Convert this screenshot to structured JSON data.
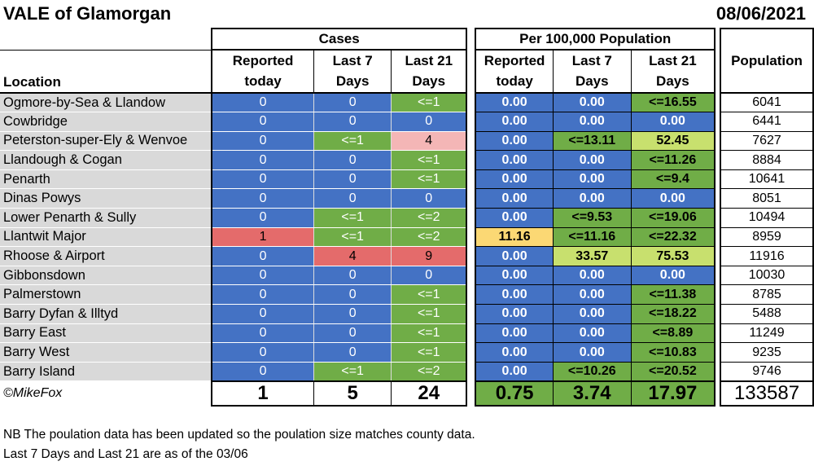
{
  "title": "VALE of Glamorgan",
  "date": "08/06/2021",
  "headers": {
    "location": "Location",
    "cases_group": "Cases",
    "per100k_group": "Per 100,000 Population",
    "population": "Population",
    "reported_today_1": "Reported",
    "reported_today_2": "today",
    "last7_1": "Last 7",
    "last7_2": "Days",
    "last21_1": "Last 21",
    "last21_2": "Days"
  },
  "rows": [
    {
      "location": "Ogmore-by-Sea & Llandow",
      "reported": "0",
      "last7": "0",
      "last21": "<=1",
      "p_reported": "0.00",
      "p_last7": "0.00",
      "p_last21": "<=16.55",
      "population": "6041"
    },
    {
      "location": "Cowbridge",
      "reported": "0",
      "last7": "0",
      "last21": "0",
      "p_reported": "0.00",
      "p_last7": "0.00",
      "p_last21": "0.00",
      "population": "6441"
    },
    {
      "location": "Peterston-super-Ely & Wenvoe",
      "reported": "0",
      "last7": "<=1",
      "last21": "4",
      "p_reported": "0.00",
      "p_last7": "<=13.11",
      "p_last21": "52.45",
      "population": "7627"
    },
    {
      "location": "Llandough & Cogan",
      "reported": "0",
      "last7": "0",
      "last21": "<=1",
      "p_reported": "0.00",
      "p_last7": "0.00",
      "p_last21": "<=11.26",
      "population": "8884"
    },
    {
      "location": "Penarth",
      "reported": "0",
      "last7": "0",
      "last21": "<=1",
      "p_reported": "0.00",
      "p_last7": "0.00",
      "p_last21": "<=9.4",
      "population": "10641"
    },
    {
      "location": "Dinas Powys",
      "reported": "0",
      "last7": "0",
      "last21": "0",
      "p_reported": "0.00",
      "p_last7": "0.00",
      "p_last21": "0.00",
      "population": "8051"
    },
    {
      "location": "Lower Penarth & Sully",
      "reported": "0",
      "last7": "<=1",
      "last21": "<=2",
      "p_reported": "0.00",
      "p_last7": "<=9.53",
      "p_last21": "<=19.06",
      "population": "10494"
    },
    {
      "location": "Llantwit Major",
      "reported": "1",
      "last7": "<=1",
      "last21": "<=2",
      "p_reported": "11.16",
      "p_last7": "<=11.16",
      "p_last21": "<=22.32",
      "population": "8959"
    },
    {
      "location": "Rhoose & Airport",
      "reported": "0",
      "last7": "4",
      "last21": "9",
      "p_reported": "0.00",
      "p_last7": "33.57",
      "p_last21": "75.53",
      "population": "11916"
    },
    {
      "location": "Gibbonsdown",
      "reported": "0",
      "last7": "0",
      "last21": "0",
      "p_reported": "0.00",
      "p_last7": "0.00",
      "p_last21": "0.00",
      "population": "10030"
    },
    {
      "location": "Palmerstown",
      "reported": "0",
      "last7": "0",
      "last21": "<=1",
      "p_reported": "0.00",
      "p_last7": "0.00",
      "p_last21": "<=11.38",
      "population": "8785"
    },
    {
      "location": "Barry Dyfan & Illtyd",
      "reported": "0",
      "last7": "0",
      "last21": "<=1",
      "p_reported": "0.00",
      "p_last7": "0.00",
      "p_last21": "<=18.22",
      "population": "5488"
    },
    {
      "location": "Barry East",
      "reported": "0",
      "last7": "0",
      "last21": "<=1",
      "p_reported": "0.00",
      "p_last7": "0.00",
      "p_last21": "<=8.89",
      "population": "11249"
    },
    {
      "location": "Barry West",
      "reported": "0",
      "last7": "0",
      "last21": "<=1",
      "p_reported": "0.00",
      "p_last7": "0.00",
      "p_last21": "<=10.83",
      "population": "9235"
    },
    {
      "location": "Barry Island",
      "reported": "0",
      "last7": "<=1",
      "last21": "<=2",
      "p_reported": "0.00",
      "p_last7": "<=10.26",
      "p_last21": "<=20.52",
      "population": "9746"
    }
  ],
  "totals": {
    "signature": "©MikeFox",
    "reported": "1",
    "last7": "5",
    "last21": "24",
    "p_reported": "0.75",
    "p_last7": "3.74",
    "p_last21": "17.97",
    "population": "133587"
  },
  "notes": [
    "NB The poulation data has been updated so the poulation size matches county data.",
    "Last 7 Days and Last 21 are as of the 03/06"
  ],
  "colors": {
    "blue": "#4472c4",
    "green": "#70ad47",
    "pink": "#f4b6b6",
    "red": "#e46b6b",
    "yellow": "#fbd874",
    "light_green": "#c8e06e",
    "location_grey": "#d9d9d9"
  }
}
